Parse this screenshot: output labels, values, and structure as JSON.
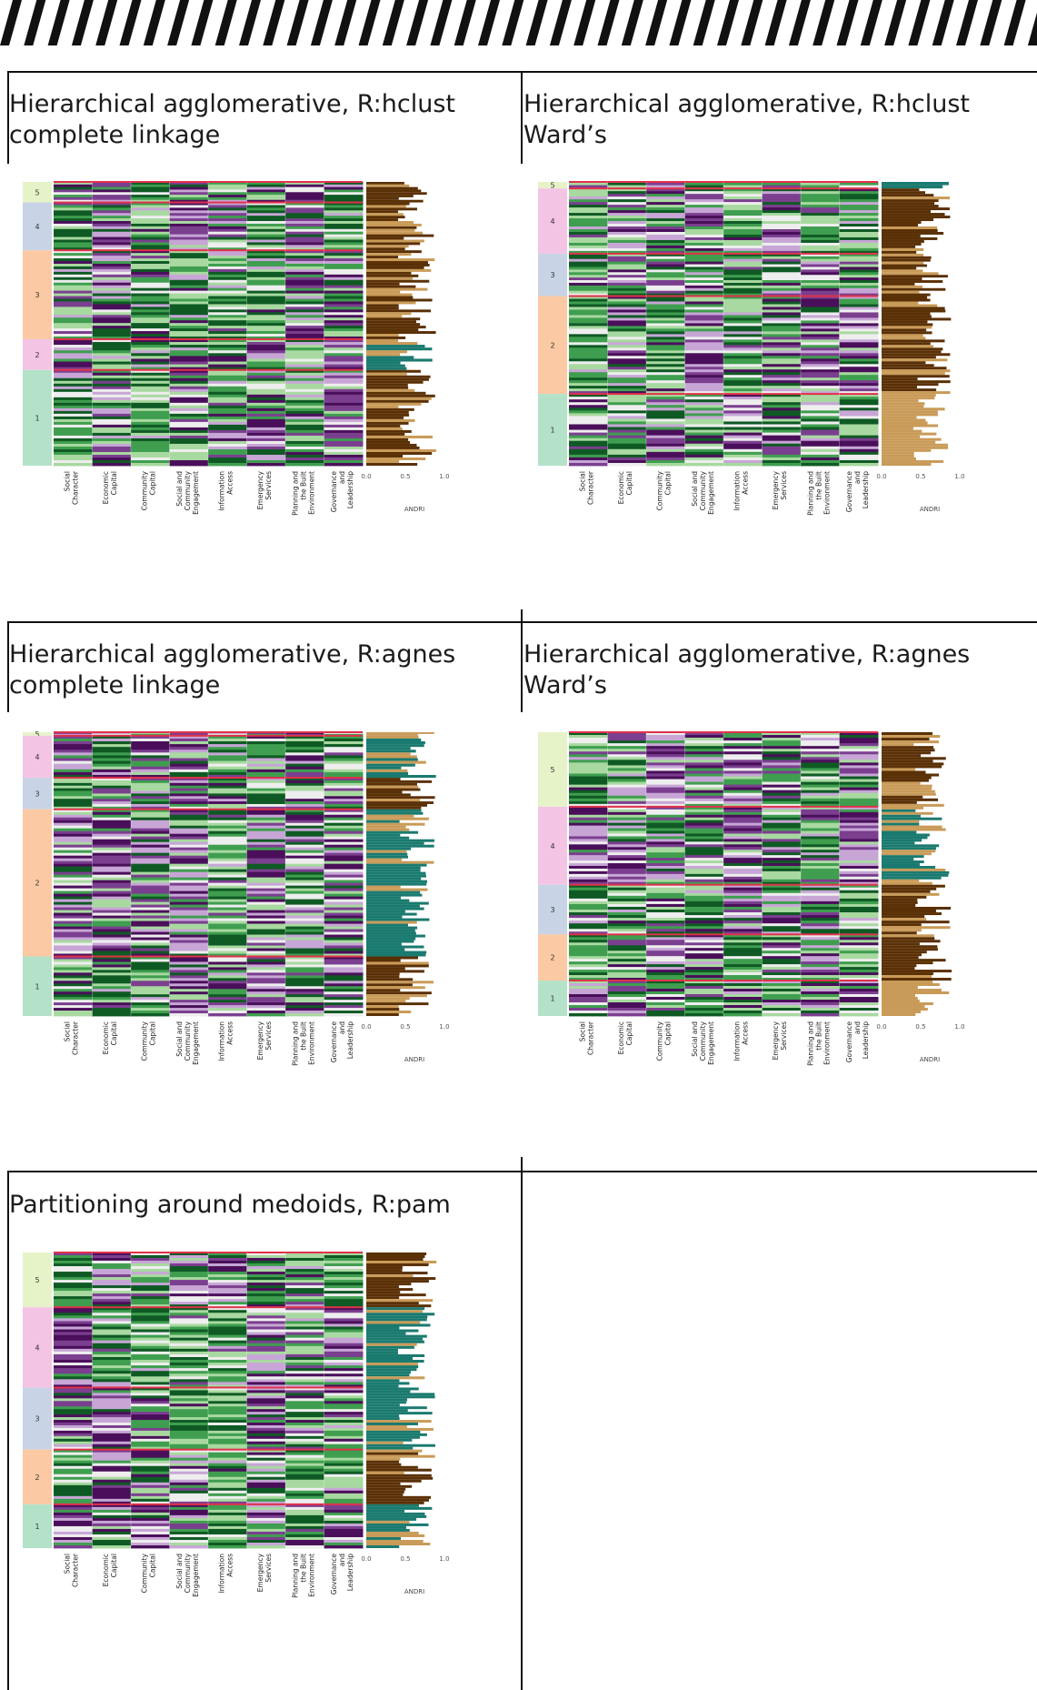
{
  "panels": [
    {
      "title": "Hierarchical agglomerative, R:hclust\ncomplete linkage",
      "chart_data": {
        "type": "heatmap",
        "clusters": [
          {
            "label": "5",
            "size": 6,
            "color": "#e6f3c8"
          },
          {
            "label": "4",
            "size": 14,
            "color": "#c9d3e6"
          },
          {
            "label": "3",
            "size": 26,
            "color": "#fbc9a3"
          },
          {
            "label": "2",
            "size": 9,
            "color": "#f4c4e4"
          },
          {
            "label": "1",
            "size": 28,
            "color": "#b4e2c8"
          }
        ],
        "columns": [
          "Social Character",
          "Economic Capital",
          "Community Capital",
          "Social and Community Engagement",
          "Information Access",
          "Emergency Services",
          "Planning and the Built Environment",
          "Governance and Leadership"
        ],
        "bar_axis": {
          "label": "ANDRI",
          "ticks": [
            "0.0",
            "0.5",
            "1.0"
          ]
        }
      }
    },
    {
      "title": "Hierarchical agglomerative, R:hclust\nWard’s",
      "chart_data": {
        "type": "heatmap",
        "clusters": [
          {
            "label": "5",
            "size": 2,
            "color": "#e6f3c8"
          },
          {
            "label": "4",
            "size": 20,
            "color": "#f4c4e4"
          },
          {
            "label": "3",
            "size": 13,
            "color": "#c9d3e6"
          },
          {
            "label": "2",
            "size": 30,
            "color": "#fbc9a3"
          },
          {
            "label": "1",
            "size": 22,
            "color": "#b4e2c8"
          }
        ],
        "columns": [
          "Social Character",
          "Economic Capital",
          "Community Capital",
          "Social and Community Engagement",
          "Information Access",
          "Emergency Services",
          "Planning and the Built Environment",
          "Governance and Leadership"
        ],
        "bar_axis": {
          "label": "ANDRI",
          "ticks": [
            "0.0",
            "0.5",
            "1.0"
          ]
        }
      }
    },
    {
      "title": "Hierarchical agglomerative, R:agnes\ncomplete linkage",
      "chart_data": {
        "type": "heatmap",
        "clusters": [
          {
            "label": "5",
            "size": 1,
            "color": "#e6f3c8"
          },
          {
            "label": "4",
            "size": 12,
            "color": "#f4c4e4"
          },
          {
            "label": "3",
            "size": 9,
            "color": "#c9d3e6"
          },
          {
            "label": "2",
            "size": 42,
            "color": "#fbc9a3"
          },
          {
            "label": "1",
            "size": 17,
            "color": "#b4e2c8"
          }
        ],
        "columns": [
          "Social Character",
          "Economic Capital",
          "Community Capital",
          "Social and Community Engagement",
          "Information Access",
          "Emergency Services",
          "Planning and the Built Environment",
          "Governance and Leadership"
        ],
        "bar_axis": {
          "label": "ANDRI",
          "ticks": [
            "0.0",
            "0.5",
            "1.0"
          ]
        }
      }
    },
    {
      "title": "Hierarchical agglomerative, R:agnes\nWard’s",
      "chart_data": {
        "type": "heatmap",
        "clusters": [
          {
            "label": "5",
            "size": 21,
            "color": "#e6f3c8"
          },
          {
            "label": "4",
            "size": 22,
            "color": "#f4c4e4"
          },
          {
            "label": "3",
            "size": 14,
            "color": "#c9d3e6"
          },
          {
            "label": "2",
            "size": 13,
            "color": "#fbc9a3"
          },
          {
            "label": "1",
            "size": 10,
            "color": "#b4e2c8"
          }
        ],
        "columns": [
          "Social Character",
          "Economic Capital",
          "Community Capital",
          "Social and Community Engagement",
          "Information Access",
          "Emergency Services",
          "Planning and the Built Environment",
          "Governance and Leadership"
        ],
        "bar_axis": {
          "label": "ANDRI",
          "ticks": [
            "0.0",
            "0.5",
            "1.0"
          ]
        }
      }
    },
    {
      "title": "Partitioning around medoids, R:pam",
      "chart_data": {
        "type": "heatmap",
        "clusters": [
          {
            "label": "5",
            "size": 15,
            "color": "#e6f3c8"
          },
          {
            "label": "4",
            "size": 22,
            "color": "#f4c4e4"
          },
          {
            "label": "3",
            "size": 17,
            "color": "#c9d3e6"
          },
          {
            "label": "2",
            "size": 15,
            "color": "#fbc9a3"
          },
          {
            "label": "1",
            "size": 12,
            "color": "#b4e2c8"
          }
        ],
        "columns": [
          "Social Character",
          "Economic Capital",
          "Community Capital",
          "Social and Community Engagement",
          "Information Access",
          "Emergency Services",
          "Planning and the Built Environment",
          "Governance and Leadership"
        ],
        "bar_axis": {
          "label": "ANDRI",
          "ticks": [
            "0.0",
            "0.5",
            "1.0"
          ]
        }
      }
    }
  ],
  "colors": {
    "purple_dark": "#4a0f5a",
    "purple_mid": "#7b3f8f",
    "purple_light": "#c7a6d6",
    "neutral": "#eeeeee",
    "green_light": "#a8d9a0",
    "green_mid": "#3f9e4f",
    "green_dark": "#0f5a24",
    "bar_brown": "#5a3006",
    "bar_tan": "#c99b58",
    "bar_teal": "#1a7a6f",
    "separator": "#e0314a"
  }
}
